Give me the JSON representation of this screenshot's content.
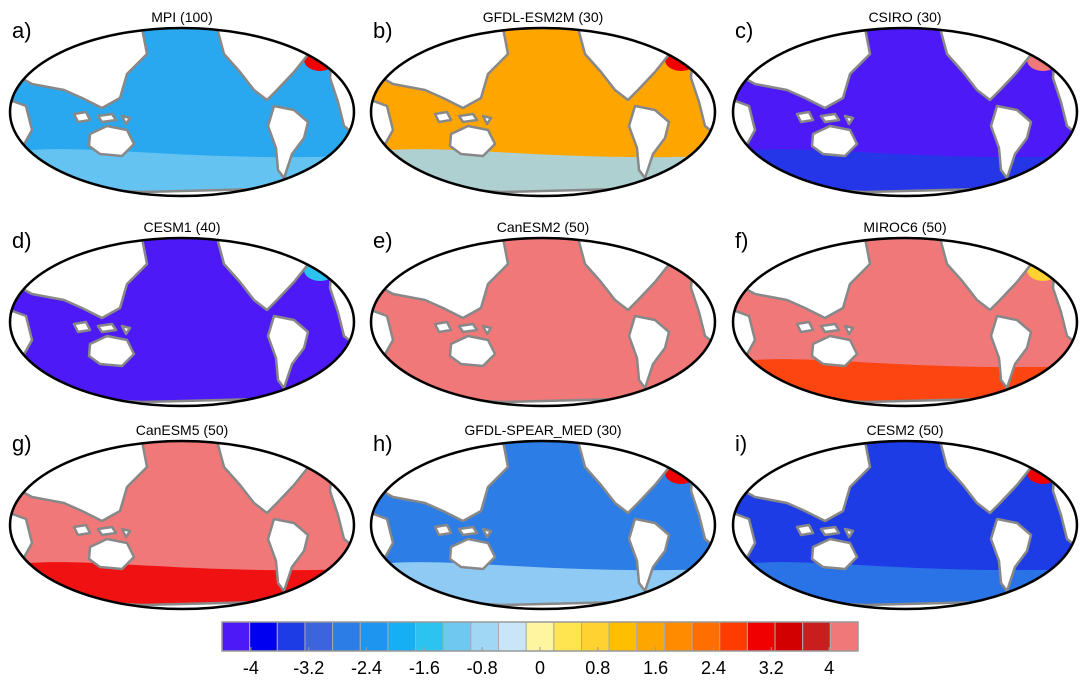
{
  "panels": [
    {
      "label": "a)",
      "title": "MPI (100)",
      "fill": "#29a8ef",
      "south_color": "#6ec8f0",
      "north_atlantic_color": "#f00000"
    },
    {
      "label": "b)",
      "title": "GFDL-ESM2M (30)",
      "fill": "#ffa500",
      "south_color": "#a0d7f5",
      "north_atlantic_color": "#f00000"
    },
    {
      "label": "c)",
      "title": "CSIRO (30)",
      "fill": "#4d1af7",
      "south_color": "#1e3ce6",
      "north_atlantic_color": "#f07878"
    },
    {
      "label": "d)",
      "title": "CESM1 (40)",
      "fill": "#4d1af7",
      "south_color": "#4d1af7",
      "north_atlantic_color": "#2dc3f0"
    },
    {
      "label": "e)",
      "title": "CanESM2 (50)",
      "fill": "#f07878",
      "south_color": "#f07878",
      "north_atlantic_color": "#f07878"
    },
    {
      "label": "f)",
      "title": "MIROC6 (50)",
      "fill": "#f07878",
      "south_color": "#ff3c00",
      "north_atlantic_color": "#ffd232"
    },
    {
      "label": "g)",
      "title": "CanESM5 (50)",
      "fill": "#f07878",
      "south_color": "#f00000",
      "north_atlantic_color": "#f07878"
    },
    {
      "label": "h)",
      "title": "GFDL-SPEAR_MED (30)",
      "fill": "#2d7de6",
      "south_color": "#a0d7f5",
      "north_atlantic_color": "#f00000"
    },
    {
      "label": "i)",
      "title": "CESM2 (50)",
      "fill": "#1e3ce6",
      "south_color": "#2d7de6",
      "north_atlantic_color": "#f00000"
    }
  ],
  "colorbar": {
    "lim": [
      -4.4,
      4.4
    ],
    "ticks": [
      -4,
      -3.2,
      -2.4,
      -1.6,
      -0.8,
      0,
      0.8,
      1.6,
      2.4,
      3.2,
      4
    ],
    "colors": [
      "#4d1af7",
      "#0000f0",
      "#1e3ce6",
      "#3c64dc",
      "#2d7de6",
      "#1e96f0",
      "#14aff5",
      "#2dc3f0",
      "#6ec8f0",
      "#a0d7f5",
      "#c8e6f8",
      "#fff5a0",
      "#ffe650",
      "#ffd232",
      "#ffbe00",
      "#ffa500",
      "#ff8c00",
      "#ff6e00",
      "#ff3c00",
      "#f00000",
      "#d20000",
      "#c81e1e",
      "#f07878"
    ]
  }
}
